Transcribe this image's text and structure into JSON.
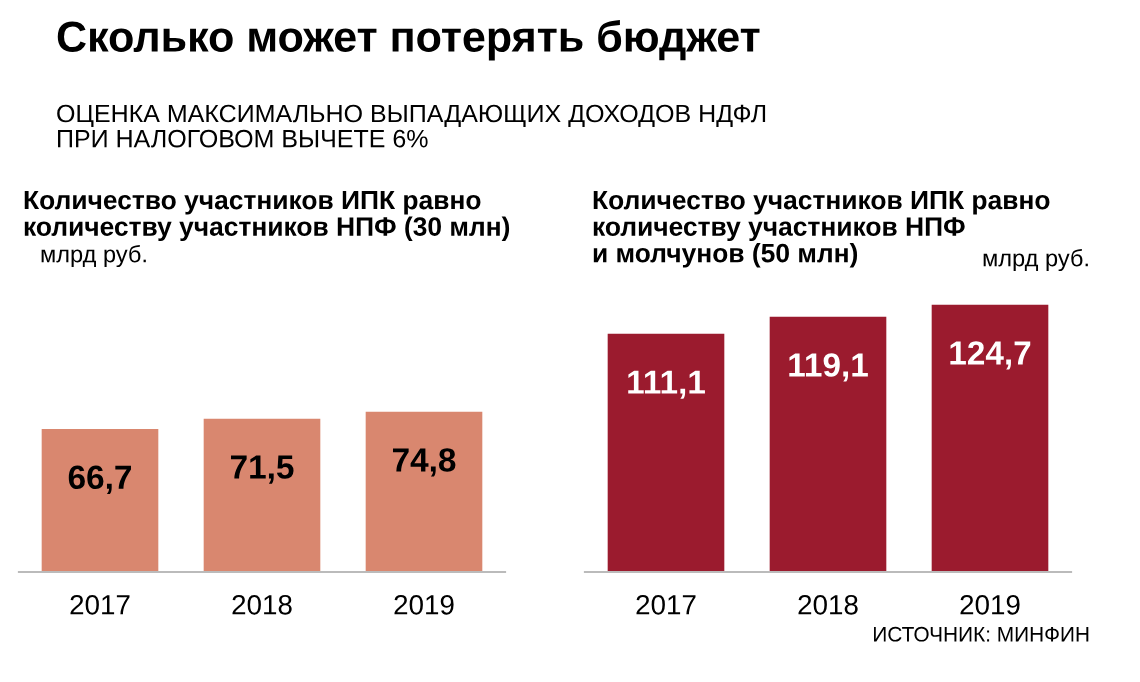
{
  "chart_data": [
    {
      "type": "other",
      "title": "Сколько может потерять бюджет",
      "subtitle": "ОЦЕНКА МАКСИМАЛЬНО ВЫПАДАЮЩИХ ДОХОДОВ НДФЛ\nПРИ НАЛОГОВОМ ВЫЧЕТЕ 6%"
    },
    {
      "type": "bar",
      "title": "Количество участников ИПК равно\nколичеству участников НПФ (30 млн)",
      "ylabel": "млрд руб.",
      "categories": [
        "2017",
        "2018",
        "2019"
      ],
      "values": [
        66.7,
        71.5,
        74.8
      ],
      "value_labels": [
        "66,7",
        "71,5",
        "74,8"
      ],
      "color": "#d9876f",
      "tick_labels": "x"
    },
    {
      "type": "bar",
      "title": "Количество участников ИПК равно\nколичеству участников НПФ\nи молчунов (50 млн)",
      "ylabel": "млрд руб.",
      "categories": [
        "2017",
        "2018",
        "2019"
      ],
      "values": [
        111.1,
        119.1,
        124.7
      ],
      "value_labels": [
        "111,1",
        "119,1",
        "124,7"
      ],
      "color": "#9b1b2e",
      "tick_labels": "x",
      "annotations": [
        "ИСТОЧНИК: МИНФИН"
      ]
    }
  ]
}
